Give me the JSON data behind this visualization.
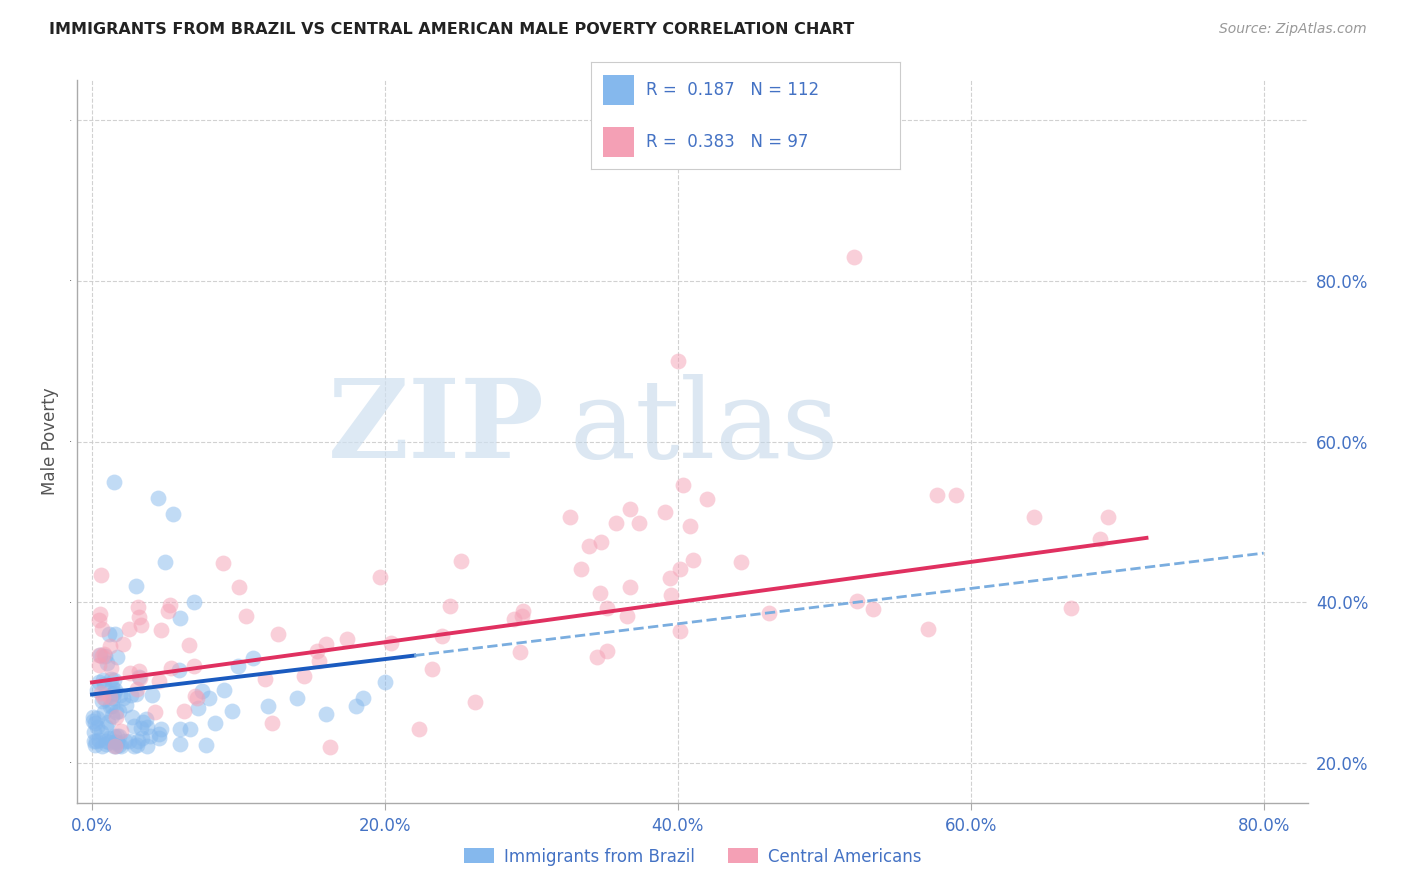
{
  "title": "IMMIGRANTS FROM BRAZIL VS CENTRAL AMERICAN MALE POVERTY CORRELATION CHART",
  "source": "Source: ZipAtlas.com",
  "ylabel": "Male Poverty",
  "xlim": [
    -0.01,
    0.83
  ],
  "ylim": [
    -0.05,
    0.85
  ],
  "brazil_R": 0.187,
  "brazil_N": 112,
  "ca_R": 0.383,
  "ca_N": 97,
  "brazil_color": "#85b8ed",
  "ca_color": "#f4a0b5",
  "brazil_line_color": "#1a5abf",
  "ca_line_color": "#e03060",
  "brazil_dash_color": "#7aaddf",
  "brazil_scatter_alpha": 0.5,
  "ca_scatter_alpha": 0.5,
  "legend_label_brazil": "Immigrants from Brazil",
  "legend_label_ca": "Central Americans",
  "grid_color": "#cccccc",
  "tick_color": "#4472c4",
  "axis_color": "#aaaaaa",
  "watermark_zip_color": "#cfe0f0",
  "watermark_atlas_color": "#c0d5e8"
}
